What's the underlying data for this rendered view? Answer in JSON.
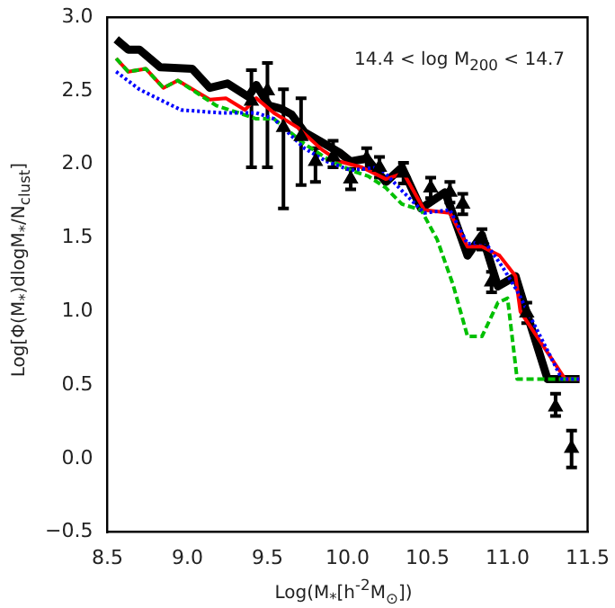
{
  "chart_data": {
    "type": "line",
    "xlabel": "Log(M$_{*}$[h$^{-2}$M$_{⊙}$])",
    "ylabel": "Log[Φ(M$_{*}$)dlogM$_{*}$/N$_{clust}$]",
    "annotations": [
      "14.4 < log M$_{200}$ < 14.7"
    ],
    "xlim": [
      8.5,
      11.5
    ],
    "ylim": [
      -0.5,
      3.0
    ],
    "xticks": [
      {
        "value": 8.5,
        "label": "8.5"
      },
      {
        "value": 9,
        "label": "9.0"
      },
      {
        "value": 9.5,
        "label": "9.5"
      },
      {
        "value": 10,
        "label": "10.0"
      },
      {
        "value": 10.5,
        "label": "10.5"
      },
      {
        "value": 11,
        "label": "11.0"
      },
      {
        "value": 11.5,
        "label": "11.5"
      }
    ],
    "yticks": [
      {
        "value": -0.5,
        "label": "−0.5"
      },
      {
        "value": 0,
        "label": "0.0"
      },
      {
        "value": 0.5,
        "label": "0.5"
      },
      {
        "value": 1,
        "label": "1.0"
      },
      {
        "value": 1.5,
        "label": "1.5"
      },
      {
        "value": 2,
        "label": "2.0"
      },
      {
        "value": 2.5,
        "label": "2.5"
      },
      {
        "value": 3,
        "label": "3.0"
      }
    ],
    "grid": false,
    "legend": false,
    "marker": "none",
    "series": [
      {
        "type": "line",
        "color": "#000000",
        "line_style": "solid",
        "x": [
          8.555,
          8.63,
          8.7,
          8.83,
          9.03,
          9.14,
          9.25,
          9.38,
          9.43,
          9.51,
          9.58,
          9.65,
          9.73,
          9.84,
          9.95,
          10.02,
          10.12,
          10.24,
          10.34,
          10.46,
          10.61,
          10.75,
          10.84,
          10.94,
          11.05,
          11.12,
          11.25,
          11.45
        ],
        "values": [
          2.85,
          2.78,
          2.78,
          2.66,
          2.65,
          2.52,
          2.55,
          2.46,
          2.54,
          2.4,
          2.38,
          2.34,
          2.22,
          2.15,
          2.08,
          2.02,
          2.04,
          1.88,
          1.98,
          1.7,
          1.81,
          1.38,
          1.52,
          1.17,
          1.24,
          0.99,
          0.54,
          0.54
        ]
      },
      {
        "type": "line",
        "color": "#ff0000",
        "line_style": "solid",
        "x": [
          8.555,
          8.63,
          8.74,
          8.85,
          8.94,
          9.14,
          9.24,
          9.36,
          9.43,
          9.54,
          9.69,
          9.84,
          9.95,
          10.09,
          10.24,
          10.35,
          10.48,
          10.64,
          10.75,
          10.84,
          10.95,
          11.05,
          11.08,
          11.36,
          11.45
        ],
        "values": [
          2.72,
          2.63,
          2.65,
          2.52,
          2.57,
          2.44,
          2.45,
          2.37,
          2.45,
          2.35,
          2.25,
          2.1,
          2.02,
          1.98,
          1.9,
          1.94,
          1.69,
          1.67,
          1.44,
          1.44,
          1.38,
          1.24,
          1.0,
          0.54,
          0.54
        ]
      },
      {
        "type": "line",
        "color": "#00c000",
        "line_style": "dashed",
        "x": [
          8.555,
          8.63,
          8.74,
          8.85,
          8.94,
          9.18,
          9.32,
          9.43,
          9.54,
          9.73,
          9.87,
          10.02,
          10.13,
          10.24,
          10.34,
          10.46,
          10.56,
          10.66,
          10.75,
          10.84,
          10.94,
          11.0,
          11.06,
          11.45
        ],
        "values": [
          2.72,
          2.63,
          2.65,
          2.52,
          2.57,
          2.4,
          2.35,
          2.31,
          2.31,
          2.14,
          2.04,
          1.96,
          1.92,
          1.84,
          1.73,
          1.69,
          1.49,
          1.18,
          0.83,
          0.83,
          1.06,
          1.09,
          0.54,
          0.54
        ]
      },
      {
        "type": "line",
        "color": "#0000ff",
        "line_style": "dotted",
        "x": [
          8.555,
          8.7,
          8.81,
          8.96,
          9.21,
          9.43,
          9.54,
          9.73,
          9.87,
          10.02,
          10.2,
          10.35,
          10.48,
          10.64,
          10.75,
          10.86,
          10.97,
          11.06,
          11.34,
          11.45
        ],
        "values": [
          2.63,
          2.51,
          2.45,
          2.37,
          2.35,
          2.35,
          2.31,
          2.11,
          2.02,
          1.96,
          1.98,
          1.81,
          1.67,
          1.69,
          1.46,
          1.47,
          1.3,
          1.14,
          0.54,
          0.54
        ]
      },
      {
        "type": "scatter",
        "color": "#000000",
        "marker": "triangle",
        "x": [
          9.4,
          9.5,
          9.6,
          9.71,
          9.8,
          9.91,
          10.02,
          10.12,
          10.2,
          10.35,
          10.52,
          10.64,
          10.72,
          10.84,
          10.9,
          11.12,
          11.3,
          11.4
        ],
        "values": [
          2.43,
          2.5,
          2.25,
          2.19,
          2.02,
          2.05,
          1.9,
          2.04,
          1.98,
          1.94,
          1.84,
          1.81,
          1.73,
          1.49,
          1.2,
          0.99,
          0.35,
          0.07
        ],
        "errors": [
          [
            1.98,
            2.64
          ],
          [
            1.98,
            2.69
          ],
          [
            1.7,
            2.51
          ],
          [
            1.86,
            2.45
          ],
          [
            1.88,
            2.11
          ],
          [
            1.98,
            2.16
          ],
          [
            1.83,
            1.97
          ],
          [
            1.97,
            2.11
          ],
          [
            1.91,
            2.05
          ],
          [
            1.87,
            2.01
          ],
          [
            1.77,
            1.91
          ],
          [
            1.74,
            1.88
          ],
          [
            1.66,
            1.8
          ],
          [
            1.42,
            1.56
          ],
          [
            1.13,
            1.27
          ],
          [
            0.92,
            1.06
          ],
          [
            0.29,
            0.44
          ],
          [
            -0.06,
            0.19
          ]
        ]
      }
    ]
  }
}
